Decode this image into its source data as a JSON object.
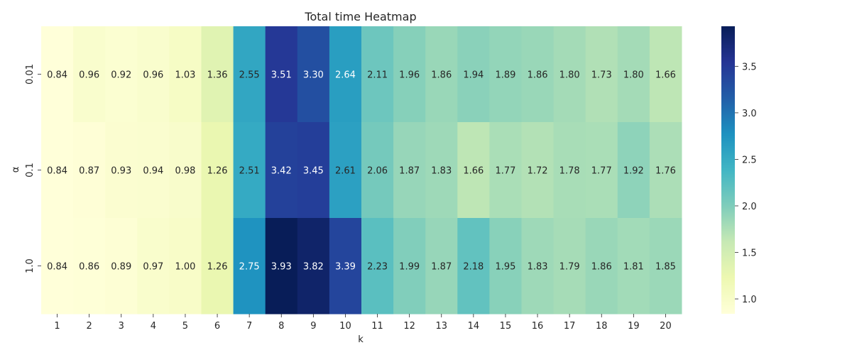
{
  "chart_data": {
    "type": "heatmap",
    "title": "Total time Heatmap",
    "xlabel": "k",
    "ylabel": "α",
    "x_categories": [
      "1",
      "2",
      "3",
      "4",
      "5",
      "6",
      "7",
      "8",
      "9",
      "10",
      "11",
      "12",
      "13",
      "14",
      "15",
      "16",
      "17",
      "18",
      "19",
      "20"
    ],
    "y_categories": [
      "0.01",
      "0.1",
      "1.0"
    ],
    "values": [
      [
        0.84,
        0.96,
        0.92,
        0.96,
        1.03,
        1.36,
        2.55,
        3.51,
        3.3,
        2.64,
        2.11,
        1.96,
        1.86,
        1.94,
        1.89,
        1.86,
        1.8,
        1.73,
        1.8,
        1.66
      ],
      [
        0.84,
        0.87,
        0.93,
        0.94,
        0.98,
        1.26,
        2.51,
        3.42,
        3.45,
        2.61,
        2.06,
        1.87,
        1.83,
        1.66,
        1.77,
        1.72,
        1.78,
        1.77,
        1.92,
        1.76
      ],
      [
        0.84,
        0.86,
        0.89,
        0.97,
        1.0,
        1.26,
        2.75,
        3.93,
        3.82,
        3.39,
        2.23,
        1.99,
        1.87,
        2.18,
        1.95,
        1.83,
        1.79,
        1.86,
        1.81,
        1.85
      ]
    ],
    "value_format": "2 decimals",
    "colormap": "YlGnBu",
    "color_range": [
      0.84,
      3.93
    ],
    "colorbar": {
      "ticks": [
        1.0,
        1.5,
        2.0,
        2.5,
        3.0,
        3.5
      ],
      "tick_labels": [
        "1.0",
        "1.5",
        "2.0",
        "2.5",
        "3.0",
        "3.5"
      ],
      "placement": "right"
    },
    "grid": false
  }
}
